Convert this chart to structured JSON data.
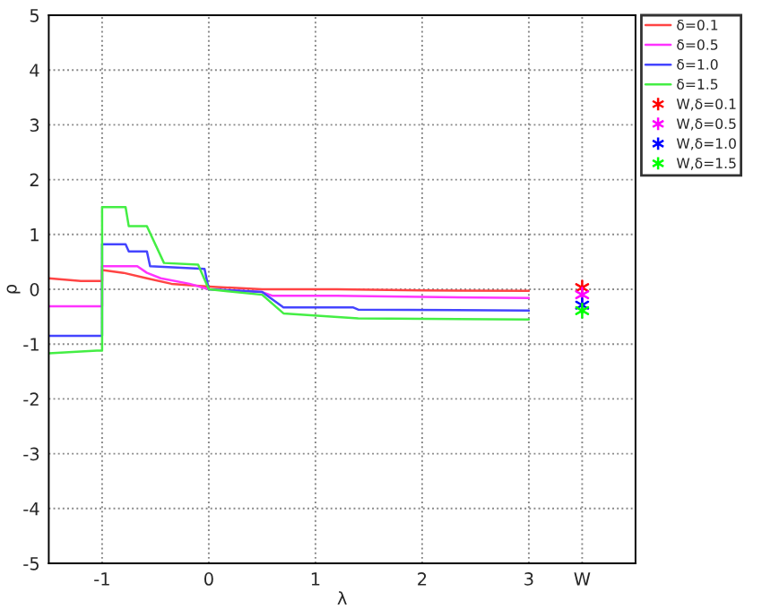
{
  "chart_data": {
    "type": "line",
    "xlabel": "λ",
    "ylabel": "ρ",
    "xlim": [
      -1.5,
      4
    ],
    "ylim": [
      -5,
      5
    ],
    "xticks": [
      -1,
      0,
      1,
      2,
      3,
      {
        "value": 3.5,
        "label": "W"
      }
    ],
    "yticks": [
      -5,
      -4,
      -3,
      -2,
      -1,
      0,
      1,
      2,
      3,
      4,
      5
    ],
    "grid": true,
    "legend": "top right",
    "line_style": "solid",
    "series": [
      {
        "name": "δ=0.1",
        "color": "#ff4444",
        "x": [
          -1.5,
          -1.2,
          -1.0,
          -1.0,
          -0.8,
          -0.58,
          -0.35,
          0,
          0.5,
          1.2,
          2,
          3
        ],
        "values": [
          0.2,
          0.15,
          0.15,
          0.35,
          0.3,
          0.2,
          0.1,
          0.05,
          0.0,
          0.0,
          -0.02,
          -0.03
        ]
      },
      {
        "name": "δ=0.5",
        "color": "#ff33ff",
        "x": [
          -1.5,
          -1.0,
          -1.0,
          -0.67,
          -0.58,
          -0.45,
          -0.18,
          0,
          0.5,
          0.6,
          1.2,
          2,
          3
        ],
        "values": [
          -0.31,
          -0.31,
          0.42,
          0.42,
          0.3,
          0.2,
          0.1,
          0.0,
          -0.05,
          -0.12,
          -0.12,
          -0.14,
          -0.16
        ]
      },
      {
        "name": "δ=1.0",
        "color": "#4444ff",
        "x": [
          -1.5,
          -1.0,
          -1.0,
          -0.78,
          -0.75,
          -0.58,
          -0.55,
          -0.04,
          0,
          0.5,
          0.7,
          1.35,
          1.4,
          3
        ],
        "values": [
          -0.85,
          -0.85,
          0.82,
          0.82,
          0.69,
          0.69,
          0.42,
          0.37,
          0.0,
          -0.05,
          -0.33,
          -0.33,
          -0.37,
          -0.39
        ]
      },
      {
        "name": "δ=1.5",
        "color": "#44ee44",
        "x": [
          -1.5,
          -1.05,
          -1.0,
          -1.0,
          -0.78,
          -0.75,
          -0.58,
          -0.42,
          -0.1,
          0,
          0.5,
          0.7,
          1.4,
          3
        ],
        "values": [
          -1.17,
          -1.12,
          -1.12,
          1.5,
          1.5,
          1.15,
          1.15,
          0.48,
          0.45,
          0.0,
          -0.1,
          -0.44,
          -0.53,
          -0.55
        ]
      },
      {
        "name": "W,δ=0.1",
        "type": "scatter",
        "marker": "cross",
        "color": "#ff0000",
        "x": [
          3.5
        ],
        "values": [
          0.03
        ]
      },
      {
        "name": "W,δ=0.5",
        "type": "scatter",
        "marker": "cross",
        "color": "#ff00ff",
        "x": [
          3.5
        ],
        "values": [
          -0.1
        ]
      },
      {
        "name": "W,δ=1.0",
        "type": "scatter",
        "marker": "cross",
        "color": "#0000ff",
        "x": [
          3.5
        ],
        "values": [
          -0.29
        ]
      },
      {
        "name": "W,δ=1.5",
        "type": "scatter",
        "marker": "cross",
        "color": "#00ff00",
        "x": [
          3.5
        ],
        "values": [
          -0.39
        ]
      }
    ]
  }
}
